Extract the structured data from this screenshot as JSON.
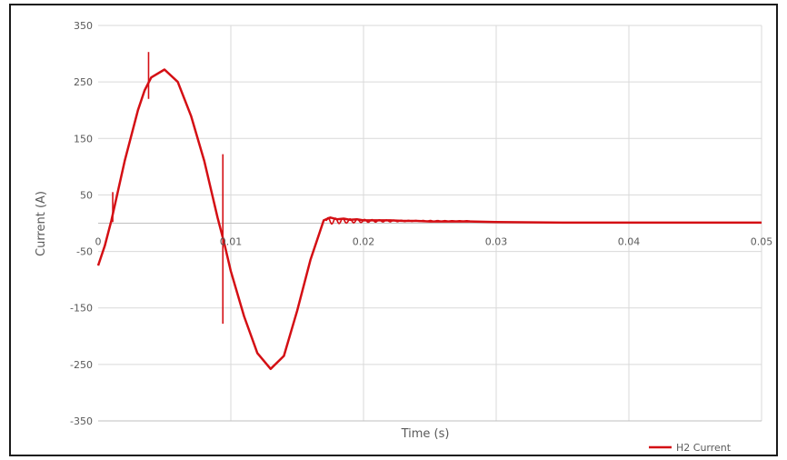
{
  "chart_data": {
    "type": "line",
    "xlabel": "Time (s)",
    "ylabel": "Current (A)",
    "xlim": [
      0,
      0.05
    ],
    "ylim": [
      -350,
      350
    ],
    "xticks": [
      0,
      0.01,
      0.02,
      0.03,
      0.04,
      0.05
    ],
    "xtick_labels": [
      "0",
      "0.01",
      "0.02",
      "0.03",
      "0.04",
      "0.05"
    ],
    "yticks": [
      350,
      250,
      150,
      50,
      -50,
      -150,
      -250,
      -350
    ],
    "ytick_labels": [
      "350",
      "250",
      "150",
      "50",
      "-50",
      "-150",
      "-250",
      "-350"
    ],
    "grid": true,
    "legend_position": "bottom-right",
    "series": [
      {
        "name": "H2 Current",
        "color": "#d40f14",
        "x": [
          0,
          0.0005,
          0.001,
          0.002,
          0.003,
          0.0035,
          0.004,
          0.005,
          0.006,
          0.007,
          0.008,
          0.009,
          0.0095,
          0.01,
          0.011,
          0.012,
          0.013,
          0.014,
          0.015,
          0.016,
          0.017,
          0.0172,
          0.0175,
          0.018,
          0.0185,
          0.019,
          0.0195,
          0.02,
          0.021,
          0.022,
          0.023,
          0.024,
          0.025,
          0.026,
          0.028,
          0.03,
          0.035,
          0.04,
          0.045,
          0.05
        ],
        "y": [
          -75,
          -40,
          5,
          110,
          200,
          235,
          258,
          272,
          250,
          190,
          110,
          10,
          -35,
          -85,
          -165,
          -230,
          -258,
          -235,
          -155,
          -65,
          5,
          7,
          10,
          7,
          8,
          6,
          7,
          5,
          5,
          5,
          4,
          4,
          3,
          3,
          3,
          2,
          1,
          1,
          1,
          1
        ]
      }
    ],
    "spikes": [
      {
        "x": 0.0011,
        "y_low": 2,
        "y_high": 55
      },
      {
        "x": 0.0038,
        "y_low": 220,
        "y_high": 303
      },
      {
        "x": 0.0094,
        "y_low": -178,
        "y_high": 122
      }
    ]
  }
}
